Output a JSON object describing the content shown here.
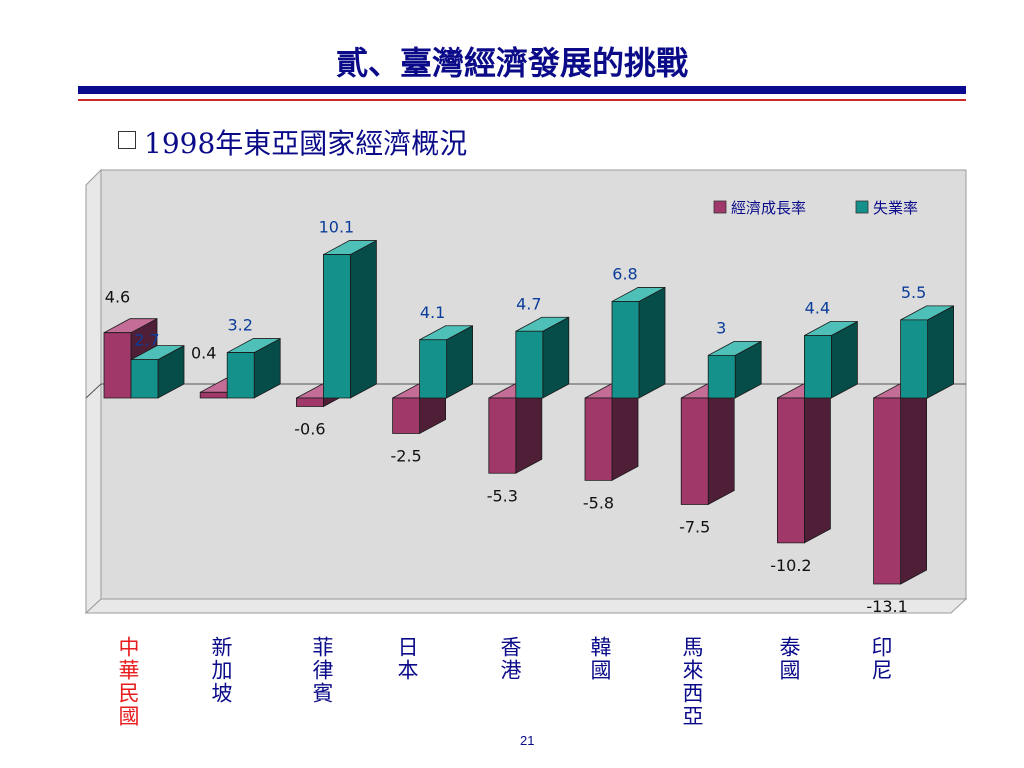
{
  "slide": {
    "title": "貳、臺灣經濟發展的挑戰",
    "subtitle": "1998年東亞國家經濟概況",
    "page_number": "21"
  },
  "colors": {
    "growth": "#A0386A",
    "unemployment": "#14918A",
    "accent_title": "#0B0B8A",
    "highlight_label": "#E81C1C"
  },
  "chart_data": {
    "type": "bar",
    "categories": [
      "中華民國",
      "新加坡",
      "菲律賓",
      "日本",
      "香港",
      "韓國",
      "馬來西亞",
      "泰國",
      "印尼"
    ],
    "series": [
      {
        "name": "經濟成長率",
        "values": [
          4.6,
          0.4,
          -0.6,
          -2.5,
          -5.3,
          -5.8,
          -7.5,
          -10.2,
          -13.1
        ]
      },
      {
        "name": "失業率",
        "values": [
          2.7,
          3.2,
          10.1,
          4.1,
          4.7,
          6.8,
          3,
          4.4,
          5.5
        ]
      }
    ],
    "value_labels": {
      "growth": [
        "4.6",
        "0.4",
        "-0.6",
        "-2.5",
        "-5.3",
        "-5.8",
        "-7.5",
        "-10.2",
        "-13.1"
      ],
      "unemployment": [
        "2.7",
        "3.2",
        "10.1",
        "4.1",
        "4.7",
        "6.8",
        "3",
        "4.4",
        "5.5"
      ]
    },
    "legend_position": "top-right",
    "three_d": true,
    "grid": false,
    "highlight_category": "中華民國"
  }
}
